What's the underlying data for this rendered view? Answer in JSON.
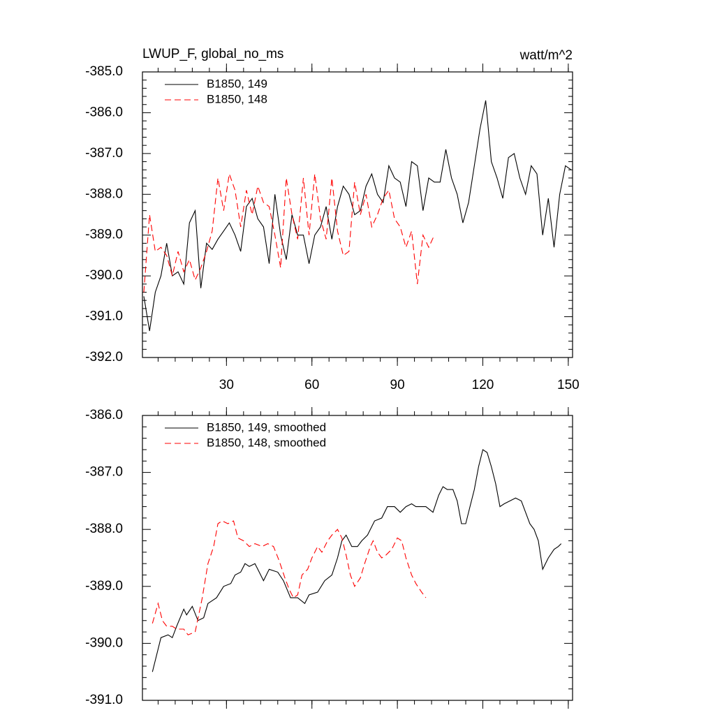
{
  "chart_data": [
    {
      "type": "line",
      "title": "LWUP_F, global_no_ms",
      "units": "watt/m^2",
      "xlim": [
        0.5,
        151.5
      ],
      "xticks": [
        30,
        60,
        90,
        120,
        150
      ],
      "show_xtick_labels": true,
      "ylim": [
        -392,
        -385
      ],
      "yticks": [
        {
          "value": -385,
          "label": "-385.0"
        },
        {
          "value": -386,
          "label": "-386.0"
        },
        {
          "value": -387,
          "label": "-387.0"
        },
        {
          "value": -388,
          "label": "-388.0"
        },
        {
          "value": -389,
          "label": "-389.0"
        },
        {
          "value": -390,
          "label": "-390.0"
        },
        {
          "value": -391,
          "label": "-391.0"
        },
        {
          "value": -392,
          "label": "-392.0"
        }
      ],
      "legend": "upper left",
      "series": [
        {
          "name": "B1850, 149",
          "color": "#000000",
          "dash": false,
          "x": [
            1,
            3,
            5,
            7,
            9,
            11,
            13,
            15,
            17,
            19,
            21,
            23,
            25,
            27,
            29,
            31,
            33,
            35,
            37,
            39,
            41,
            43,
            45,
            47,
            49,
            51,
            53,
            55,
            57,
            59,
            61,
            63,
            65,
            67,
            69,
            71,
            73,
            75,
            77,
            79,
            81,
            83,
            85,
            87,
            89,
            91,
            93,
            95,
            97,
            99,
            101,
            103,
            105,
            107,
            109,
            111,
            113,
            115,
            117,
            119,
            121,
            123,
            125,
            127,
            129,
            131,
            133,
            135,
            137,
            139,
            141,
            143,
            145,
            147,
            149,
            151
          ],
          "values": [
            -390.5,
            -391.35,
            -390.4,
            -390.0,
            -389.2,
            -390.0,
            -389.9,
            -390.2,
            -388.7,
            -388.4,
            -390.3,
            -389.2,
            -389.35,
            -389.1,
            -388.9,
            -388.7,
            -389.0,
            -389.4,
            -388.3,
            -388.1,
            -388.6,
            -388.8,
            -389.7,
            -388.0,
            -389.0,
            -389.6,
            -388.5,
            -389.0,
            -389.0,
            -389.7,
            -389.0,
            -388.8,
            -388.3,
            -389.1,
            -388.3,
            -387.8,
            -388.0,
            -388.5,
            -388.4,
            -387.8,
            -387.5,
            -388.0,
            -388.2,
            -387.3,
            -387.6,
            -387.7,
            -388.3,
            -387.2,
            -387.3,
            -388.4,
            -387.6,
            -387.7,
            -387.7,
            -386.9,
            -387.6,
            -388.0,
            -388.7,
            -388.2,
            -387.3,
            -386.4,
            -385.7,
            -387.2,
            -387.6,
            -388.1,
            -387.1,
            -387.0,
            -387.6,
            -388.0,
            -387.3,
            -387.5,
            -389.0,
            -388.1,
            -389.3,
            -388.0,
            -387.3,
            -387.4
          ]
        },
        {
          "name": "B1850, 148",
          "color": "#ff0000",
          "dash": true,
          "x": [
            1,
            3,
            5,
            7,
            9,
            11,
            13,
            15,
            17,
            19,
            21,
            23,
            25,
            27,
            29,
            31,
            33,
            35,
            37,
            39,
            41,
            43,
            45,
            47,
            49,
            51,
            53,
            55,
            57,
            59,
            61,
            63,
            65,
            67,
            69,
            71,
            73,
            75,
            77,
            79,
            81,
            83,
            85,
            87,
            89,
            91,
            93,
            95,
            97,
            99,
            101,
            103
          ],
          "values": [
            -390.4,
            -388.5,
            -389.4,
            -389.3,
            -389.5,
            -390.0,
            -389.4,
            -389.9,
            -389.6,
            -390.1,
            -389.8,
            -389.4,
            -388.9,
            -387.6,
            -388.4,
            -387.5,
            -387.9,
            -388.8,
            -387.9,
            -388.5,
            -387.8,
            -388.2,
            -388.3,
            -389.0,
            -389.8,
            -387.6,
            -388.5,
            -389.1,
            -387.6,
            -389.0,
            -387.5,
            -388.6,
            -389.1,
            -387.6,
            -388.9,
            -389.5,
            -389.4,
            -387.7,
            -388.5,
            -388.0,
            -388.8,
            -388.5,
            -388.1,
            -387.9,
            -388.6,
            -388.8,
            -389.3,
            -388.9,
            -390.2,
            -389.0,
            -389.3,
            -389.0
          ]
        }
      ]
    },
    {
      "type": "line",
      "xlim": [
        0.5,
        151.5
      ],
      "xticks": [
        30,
        60,
        90,
        120,
        150
      ],
      "show_xtick_labels": false,
      "ylim": [
        -391,
        -386
      ],
      "yticks": [
        {
          "value": -386,
          "label": "-386.0"
        },
        {
          "value": -387,
          "label": "-387.0"
        },
        {
          "value": -388,
          "label": "-388.0"
        },
        {
          "value": -389,
          "label": "-389.0"
        },
        {
          "value": -390,
          "label": "-390.0"
        },
        {
          "value": -391,
          "label": "-391.0"
        }
      ],
      "legend": "upper left",
      "series": [
        {
          "name": "B1850, 149, smoothed",
          "color": "#000000",
          "dash": false,
          "x": [
            4,
            5.5,
            7,
            9.5,
            11,
            12.5,
            15,
            16,
            18,
            20,
            22,
            23.5,
            26.5,
            29,
            31.5,
            33,
            35,
            36.5,
            38,
            40,
            41,
            43,
            45,
            48,
            50,
            52.5,
            55,
            57.5,
            59,
            62,
            64.5,
            67,
            69,
            70.5,
            72,
            74,
            76,
            77.5,
            79.5,
            82,
            84.5,
            86.5,
            89,
            91,
            93,
            95,
            96.5,
            98.5,
            100,
            102.5,
            104.5,
            106,
            107.5,
            109.5,
            111,
            112.5,
            114,
            115.5,
            117,
            118.5,
            120,
            121.5,
            123,
            124.5,
            126,
            127.5,
            129.5,
            131.5,
            133.5,
            135,
            136.5,
            138,
            139.5,
            141,
            143,
            145,
            146.5,
            147.5
          ],
          "values": [
            -390.5,
            -390.2,
            -389.9,
            -389.85,
            -389.9,
            -389.7,
            -389.4,
            -389.5,
            -389.35,
            -389.6,
            -389.55,
            -389.3,
            -389.2,
            -389.0,
            -388.95,
            -388.8,
            -388.75,
            -388.6,
            -388.65,
            -388.6,
            -388.7,
            -388.9,
            -388.7,
            -388.75,
            -388.9,
            -389.2,
            -389.2,
            -389.3,
            -389.15,
            -389.1,
            -388.9,
            -388.8,
            -388.5,
            -388.2,
            -388.1,
            -388.3,
            -388.3,
            -388.2,
            -388.1,
            -387.85,
            -387.8,
            -387.6,
            -387.6,
            -387.7,
            -387.6,
            -387.55,
            -387.6,
            -387.6,
            -387.6,
            -387.7,
            -387.4,
            -387.25,
            -387.3,
            -387.3,
            -387.5,
            -387.9,
            -387.9,
            -387.6,
            -387.3,
            -386.9,
            -386.6,
            -386.65,
            -386.9,
            -387.2,
            -387.6,
            -387.55,
            -387.5,
            -387.45,
            -387.5,
            -387.7,
            -387.9,
            -388.0,
            -388.2,
            -388.7,
            -388.5,
            -388.35,
            -388.3,
            -388.25
          ]
        },
        {
          "name": "B1850, 148, smoothed",
          "color": "#ff0000",
          "dash": true,
          "x": [
            4,
            6,
            7.5,
            9,
            11,
            12.5,
            15,
            16.5,
            19,
            21.5,
            23.5,
            25.5,
            27,
            28.5,
            30.5,
            32.5,
            34,
            36,
            38,
            40,
            42.5,
            44.5,
            46.5,
            48.5,
            50.5,
            52,
            53.5,
            55,
            56.5,
            58.5,
            60,
            62,
            63.5,
            65.5,
            67,
            69,
            70.5,
            72,
            73.5,
            75,
            77,
            78.5,
            80.5,
            81.5,
            83,
            84.5,
            86,
            88,
            90,
            91.5,
            93,
            95,
            96.5,
            98.5,
            100
          ],
          "values": [
            -389.65,
            -389.3,
            -389.6,
            -389.7,
            -389.7,
            -389.75,
            -389.75,
            -389.85,
            -389.8,
            -389.2,
            -388.6,
            -388.3,
            -387.9,
            -387.85,
            -387.9,
            -387.85,
            -388.15,
            -388.2,
            -388.3,
            -388.25,
            -388.3,
            -388.25,
            -388.3,
            -388.55,
            -388.85,
            -389.05,
            -389.2,
            -389.15,
            -388.8,
            -388.7,
            -388.5,
            -388.3,
            -388.4,
            -388.2,
            -388.1,
            -388.0,
            -388.15,
            -388.45,
            -388.8,
            -389.0,
            -388.85,
            -388.6,
            -388.3,
            -388.2,
            -388.4,
            -388.5,
            -388.45,
            -388.35,
            -388.15,
            -388.2,
            -388.5,
            -388.8,
            -388.95,
            -389.1,
            -389.2
          ]
        }
      ]
    }
  ]
}
